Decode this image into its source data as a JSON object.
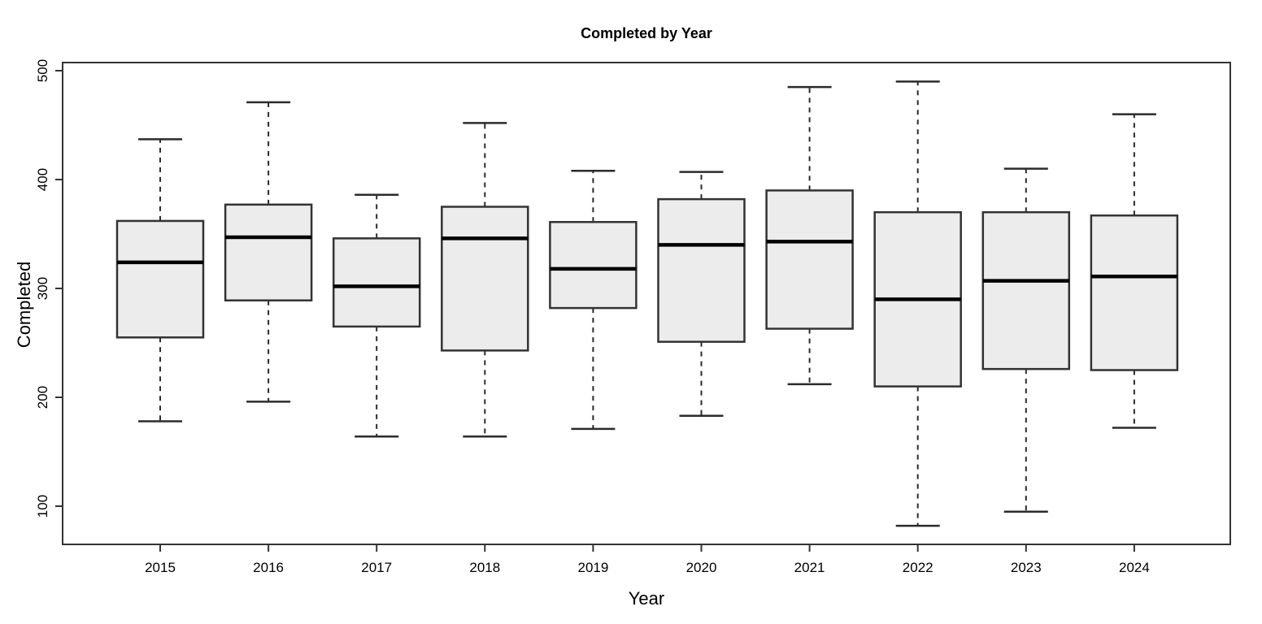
{
  "chart_data": {
    "type": "boxplot",
    "title": "Completed by Year",
    "xlabel": "Year",
    "ylabel": "Completed",
    "categories": [
      "2015",
      "2016",
      "2017",
      "2018",
      "2019",
      "2020",
      "2021",
      "2022",
      "2023",
      "2024"
    ],
    "y_ticks": [
      100,
      200,
      300,
      400,
      500
    ],
    "ylim": [
      65,
      507
    ],
    "grid": false,
    "legend": false,
    "colors": {
      "box_fill": "#ececec",
      "box_border": "#333333",
      "median": "#000000",
      "whisker": "#2b2b2b",
      "axis": "#333333",
      "text": "#000000",
      "background": "#ffffff"
    },
    "series": [
      {
        "category": "2015",
        "whisker_low": 178,
        "q1": 255,
        "median": 324,
        "q3": 362,
        "whisker_high": 437
      },
      {
        "category": "2016",
        "whisker_low": 196,
        "q1": 289,
        "median": 347,
        "q3": 377,
        "whisker_high": 471
      },
      {
        "category": "2017",
        "whisker_low": 164,
        "q1": 265,
        "median": 302,
        "q3": 346,
        "whisker_high": 386
      },
      {
        "category": "2018",
        "whisker_low": 164,
        "q1": 243,
        "median": 346,
        "q3": 375,
        "whisker_high": 452
      },
      {
        "category": "2019",
        "whisker_low": 171,
        "q1": 282,
        "median": 318,
        "q3": 361,
        "whisker_high": 408
      },
      {
        "category": "2020",
        "whisker_low": 183,
        "q1": 251,
        "median": 340,
        "q3": 382,
        "whisker_high": 407
      },
      {
        "category": "2021",
        "whisker_low": 212,
        "q1": 263,
        "median": 343,
        "q3": 390,
        "whisker_high": 485
      },
      {
        "category": "2022",
        "whisker_low": 82,
        "q1": 210,
        "median": 290,
        "q3": 370,
        "whisker_high": 490
      },
      {
        "category": "2023",
        "whisker_low": 95,
        "q1": 226,
        "median": 307,
        "q3": 370,
        "whisker_high": 410
      },
      {
        "category": "2024",
        "whisker_low": 172,
        "q1": 225,
        "median": 311,
        "q3": 367,
        "whisker_high": 460
      }
    ]
  }
}
